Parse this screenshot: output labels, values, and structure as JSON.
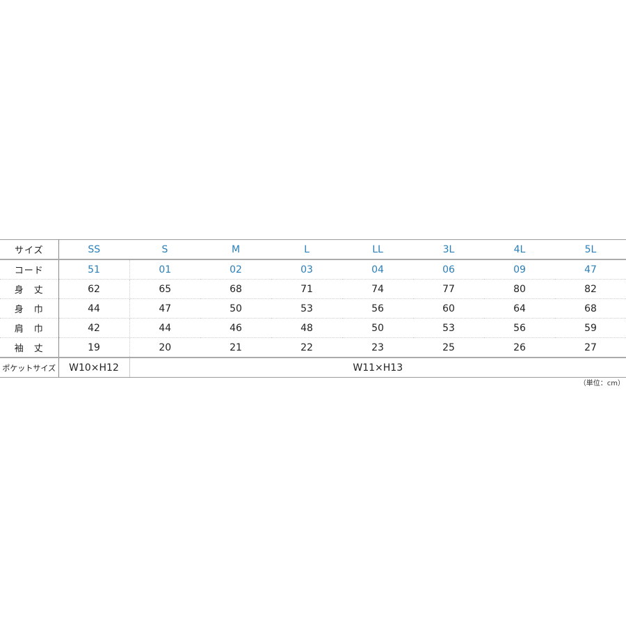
{
  "table": {
    "header_label": "サイズ",
    "sizes": [
      "SS",
      "S",
      "M",
      "L",
      "LL",
      "3L",
      "4L",
      "5L"
    ],
    "code_label": "コード",
    "codes": [
      "51",
      "01",
      "02",
      "03",
      "04",
      "06",
      "09",
      "47"
    ],
    "rows": [
      {
        "label": "身　丈",
        "values": [
          "62",
          "65",
          "68",
          "71",
          "74",
          "77",
          "80",
          "82"
        ]
      },
      {
        "label": "身　巾",
        "values": [
          "44",
          "47",
          "50",
          "53",
          "56",
          "60",
          "64",
          "68"
        ]
      },
      {
        "label": "肩　巾",
        "values": [
          "42",
          "44",
          "46",
          "48",
          "50",
          "53",
          "56",
          "59"
        ]
      },
      {
        "label": "袖　丈",
        "values": [
          "19",
          "20",
          "21",
          "22",
          "23",
          "25",
          "26",
          "27"
        ]
      }
    ],
    "pocket_label": "ポケットサイズ",
    "pocket_ss": "W10×H12",
    "pocket_other": "W11×H13"
  },
  "unit_note": "（単位：cm）",
  "colors": {
    "accent": "#2a7fb8"
  }
}
